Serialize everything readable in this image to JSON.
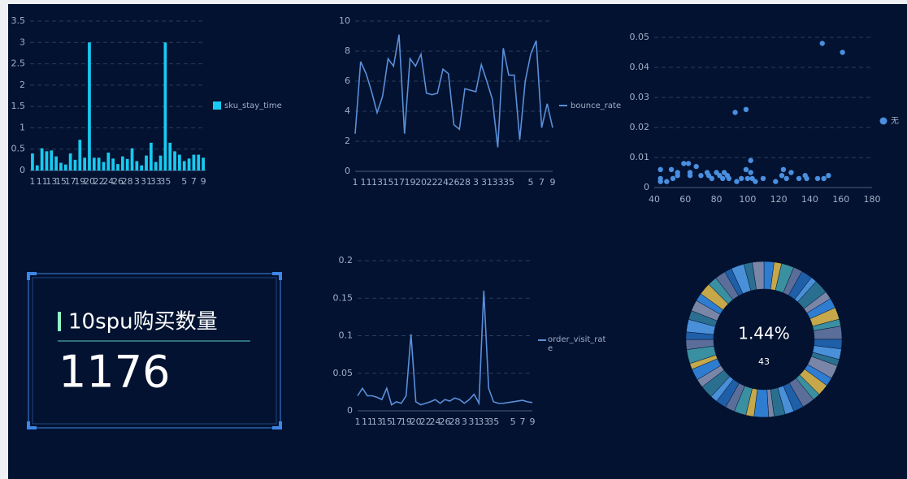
{
  "chart_data": [
    {
      "type": "bar",
      "categories": [
        "1",
        null,
        "11",
        null,
        "13",
        null,
        "15",
        null,
        "17",
        null,
        "19",
        null,
        "20",
        null,
        "22",
        null,
        "24",
        null,
        "26",
        null,
        "28",
        null,
        "3",
        null,
        "31",
        null,
        "33",
        null,
        "35",
        null,
        null,
        null,
        "5",
        null,
        "7",
        null,
        "9"
      ],
      "series": [
        {
          "name": "sku_stay_time",
          "color": "#19c9f0",
          "values": [
            0.4,
            0.12,
            0.52,
            0.45,
            0.47,
            0.33,
            0.18,
            0.14,
            0.4,
            0.25,
            0.72,
            0.3,
            3,
            0.3,
            0.3,
            0.2,
            0.42,
            0.28,
            0.15,
            0.33,
            0.27,
            0.52,
            0.22,
            0.12,
            0.35,
            0.65,
            0.2,
            0.35,
            3,
            0.65,
            0.45,
            0.37,
            0.22,
            0.28,
            0.37,
            0.37,
            0.3
          ]
        }
      ],
      "ylim": [
        0,
        3.5
      ],
      "yticks": [
        0,
        0.5,
        1,
        1.5,
        2,
        2.5,
        3,
        3.5
      ],
      "grid": true
    },
    {
      "type": "line",
      "categories": [
        "1",
        null,
        "11",
        null,
        "13",
        null,
        "15",
        null,
        "17",
        null,
        "19",
        null,
        "20",
        null,
        "22",
        null,
        "24",
        null,
        "26",
        null,
        "28",
        null,
        "3",
        null,
        "31",
        null,
        "33",
        null,
        "35",
        null,
        null,
        null,
        "5",
        null,
        "7",
        null,
        "9"
      ],
      "series": [
        {
          "name": "bounce_rate",
          "color": "#5b8fd9",
          "values": [
            2.5,
            7.3,
            6.5,
            5.3,
            3.9,
            5,
            7.5,
            7,
            9.1,
            2.5,
            7.5,
            7,
            7.8,
            5.2,
            5.1,
            5.2,
            6.8,
            6.5,
            3.1,
            2.8,
            5.5,
            5.4,
            5.3,
            7.1,
            6,
            4.8,
            1.6,
            8.2,
            6.4,
            6.4,
            2.1,
            6,
            7.8,
            8.7,
            2.9,
            4.5,
            2.9
          ]
        }
      ],
      "ylim": [
        0,
        10
      ],
      "yticks": [
        0,
        2,
        4,
        6,
        8,
        10
      ],
      "grid": true
    },
    {
      "type": "scatter",
      "series": [
        {
          "name": "无",
          "color": "#4a8fe0",
          "x": [
            44,
            44,
            44,
            48,
            51,
            52,
            55,
            55,
            59,
            62,
            63,
            63,
            67,
            70,
            74,
            75,
            77,
            80,
            82,
            84,
            85,
            87,
            88,
            92,
            93,
            96,
            99,
            99,
            100,
            102,
            102,
            103,
            105,
            110,
            118,
            122,
            123,
            125,
            128,
            133,
            137,
            138,
            145,
            148,
            149,
            152,
            161
          ],
          "values": [
            0.006,
            0.003,
            0.002,
            0.002,
            0.006,
            0.003,
            0.005,
            0.004,
            0.008,
            0.008,
            0.005,
            0.004,
            0.007,
            0.004,
            0.005,
            0.004,
            0.003,
            0.005,
            0.004,
            0.003,
            0.005,
            0.004,
            0.003,
            0.025,
            0.002,
            0.003,
            0.026,
            0.006,
            0.003,
            0.009,
            0.005,
            0.003,
            0.002,
            0.003,
            0.002,
            0.004,
            0.006,
            0.003,
            0.005,
            0.003,
            0.004,
            0.003,
            0.003,
            0.048,
            0.003,
            0.004,
            0.045
          ]
        }
      ],
      "xlim": [
        40,
        180
      ],
      "xticks": [
        40,
        60,
        80,
        100,
        120,
        140,
        160,
        180
      ],
      "ylim": [
        0,
        0.05
      ],
      "yticks": [
        0,
        0.01,
        0.02,
        0.03,
        0.04,
        0.05
      ],
      "grid": true
    },
    {
      "type": "line",
      "categories": [
        "1",
        null,
        "11",
        null,
        "13",
        null,
        "15",
        null,
        "17",
        null,
        "19",
        null,
        "20",
        null,
        "22",
        null,
        "24",
        null,
        "26",
        null,
        "28",
        null,
        "3",
        null,
        "31",
        null,
        "33",
        null,
        "35",
        null,
        null,
        null,
        "5",
        null,
        "7",
        null,
        "9"
      ],
      "series": [
        {
          "name": "order_visit_rate",
          "color": "#5b8fd9",
          "values": [
            0.02,
            0.03,
            0.02,
            0.02,
            0.018,
            0.015,
            0.03,
            0.008,
            0.012,
            0.01,
            0.02,
            0.102,
            0.012,
            0.008,
            0.01,
            0.012,
            0.015,
            0.01,
            0.015,
            0.013,
            0.017,
            0.015,
            0.01,
            0.015,
            0.022,
            0.01,
            0.16,
            0.03,
            0.012,
            0.01,
            0.01,
            0.011,
            0.012,
            0.013,
            0.014,
            0.012,
            0.011
          ]
        }
      ],
      "ylim": [
        0,
        0.2
      ],
      "yticks": [
        0,
        0.05,
        0.1,
        0.15,
        0.2
      ],
      "grid": true
    },
    {
      "type": "donut",
      "values": [
        2,
        1.5,
        2.5,
        1.8,
        2.2,
        1.2,
        2.8,
        1.6,
        2,
        2.4,
        1.4,
        2.6,
        1.9,
        2.1,
        1.3,
        2.7,
        1.7,
        2.3,
        1.5,
        2.5,
        2,
        1.8,
        2.2,
        1.1,
        2.9,
        1.6,
        2.4,
        1.9,
        2.1,
        1.4,
        2.6,
        1.7,
        2.3,
        1.2,
        2.8,
        2,
        1.5,
        2.5,
        1.8,
        2.2,
        1.6,
        2.4,
        1.9,
        2.1,
        1.44,
        2.6,
        1.7,
        2.3
      ],
      "colors": [
        "#2e7dd1",
        "#c6a84b",
        "#3a8fa0",
        "#5b6e99",
        "#1f5fa8",
        "#4a90d9",
        "#2a6f8f",
        "#7a86a8"
      ],
      "annotations": [
        "1.44%",
        "43"
      ]
    }
  ],
  "kpi": {
    "title": "10spu购买数量",
    "value": 1176
  }
}
